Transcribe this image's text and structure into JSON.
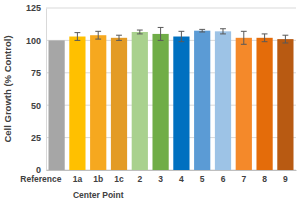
{
  "chart_data": {
    "type": "bar",
    "y_label": "Cell Growth (% Control)",
    "categories": [
      "Reference",
      "1a",
      "1b",
      "1c",
      "2",
      "3",
      "4",
      "5",
      "6",
      "7",
      "8",
      "9"
    ],
    "values": [
      100,
      103,
      104,
      102,
      106.5,
      105,
      103,
      107.5,
      107,
      102,
      102,
      101
    ],
    "errors": [
      null,
      3,
      3,
      2,
      1.5,
      5,
      4,
      1,
      2,
      5,
      3,
      3
    ],
    "colors": [
      "#a6a6a6",
      "#ffc000",
      "#f6a81f",
      "#e39b25",
      "#a9d18e",
      "#70ad47",
      "#0070c0",
      "#5b9bd5",
      "#9dc3e6",
      "#f4892a",
      "#e46c0a",
      "#b85a12"
    ],
    "groups": [
      {
        "label": "Center Point",
        "categories": [
          "1a",
          "1b",
          "1c"
        ]
      }
    ],
    "ylim": [
      0,
      125
    ],
    "yticks": [
      0,
      25,
      50,
      75,
      100,
      125
    ],
    "grid": true
  }
}
